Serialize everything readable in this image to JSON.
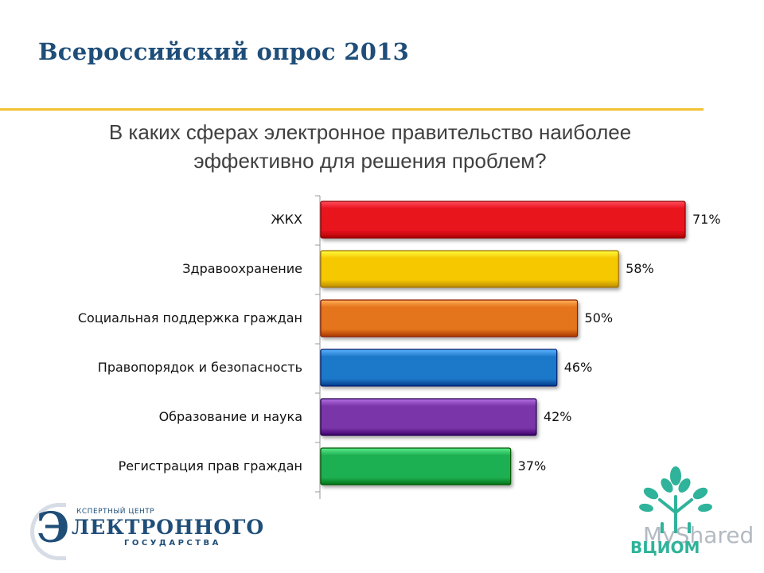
{
  "slide": {
    "title": "Всероссийский опрос 2013",
    "question": "В каких сферах электронное правительство наиболее эффективно для решения проблем?"
  },
  "chart_data": {
    "type": "bar",
    "orientation": "horizontal",
    "title": "В каких сферах электронное правительство наиболее эффективно для решения проблем?",
    "categories": [
      "ЖКХ",
      "Здравоохранение",
      "Социальная поддержка граждан",
      "Правопорядок и безопасность",
      "Образование и наука",
      "Регистрация прав граждан"
    ],
    "values": [
      71,
      58,
      50,
      46,
      42,
      37
    ],
    "value_labels": [
      "71%",
      "58%",
      "50%",
      "46%",
      "42%",
      "37%"
    ],
    "colors": [
      "#e8121f",
      "#f6c804",
      "#e5741c",
      "#1f78c8",
      "#7a35a8",
      "#1fb052"
    ],
    "unit": "%",
    "xlim": [
      0,
      71
    ],
    "xlabel": "",
    "ylabel": "",
    "grid": false
  },
  "logos": {
    "left_big_letter": "Э",
    "left_line1": "КСПЕРТНЫЙ ЦЕНТР",
    "left_line2": "ЛЕКТРОННОГО",
    "left_line3": "ГОСУДАРСТВА",
    "right_watermark": "MyShared",
    "right_brand": "ВЦИОМ",
    "brand_color": "#2fb39a"
  }
}
